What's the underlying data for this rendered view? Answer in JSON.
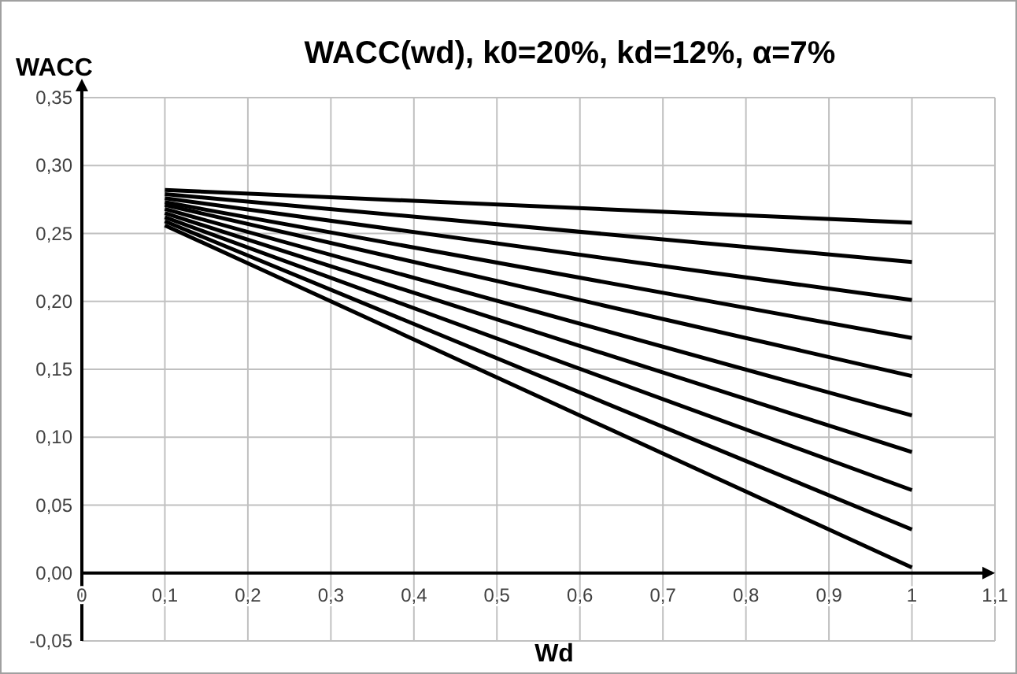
{
  "chart_data": {
    "type": "line",
    "title": "WACC(wd), k0=20%, kd=12%, α=7%",
    "xlabel": "Wd",
    "ylabel": "WACC",
    "x": [
      0.1,
      1
    ],
    "series": [
      {
        "color": "#000000",
        "values": [
          0.282,
          0.258
        ]
      },
      {
        "color": "#000000",
        "values": [
          0.279,
          0.229
        ]
      },
      {
        "color": "#000000",
        "values": [
          0.276,
          0.201
        ]
      },
      {
        "color": "#000000",
        "values": [
          0.273,
          0.173
        ]
      },
      {
        "color": "#000000",
        "values": [
          0.271,
          0.145
        ]
      },
      {
        "color": "#000000",
        "values": [
          0.268,
          0.116
        ]
      },
      {
        "color": "#000000",
        "values": [
          0.265,
          0.089
        ]
      },
      {
        "color": "#000000",
        "values": [
          0.262,
          0.061
        ]
      },
      {
        "color": "#000000",
        "values": [
          0.259,
          0.032
        ]
      },
      {
        "color": "#000000",
        "values": [
          0.256,
          0.004
        ]
      }
    ],
    "xlim": [
      0,
      1.1
    ],
    "xticks": [
      0,
      {
        "value": 0.1,
        "label": "0,1"
      },
      {
        "value": 0.2,
        "label": "0,2"
      },
      {
        "value": 0.3,
        "label": "0,3"
      },
      {
        "value": 0.4,
        "label": "0,4"
      },
      {
        "value": 0.5,
        "label": "0,5"
      },
      {
        "value": 0.6,
        "label": "0,6"
      },
      {
        "value": 0.7,
        "label": "0,7"
      },
      {
        "value": 0.8,
        "label": "0,8"
      },
      {
        "value": 0.9,
        "label": "0,9"
      },
      1,
      {
        "value": 1.1,
        "label": "1,1"
      }
    ],
    "ylim": [
      -0.05,
      0.35
    ],
    "yticks": [
      {
        "value": -0.05,
        "label": "-0,05"
      },
      {
        "value": 0,
        "label": "0,00"
      },
      {
        "value": 0.05,
        "label": "0,05"
      },
      {
        "value": 0.1,
        "label": "0,10"
      },
      {
        "value": 0.15,
        "label": "0,15"
      },
      {
        "value": 0.2,
        "label": "0,20"
      },
      {
        "value": 0.25,
        "label": "0,25"
      },
      {
        "value": 0.3,
        "label": "0,30"
      },
      {
        "value": 0.35,
        "label": "0,35"
      }
    ],
    "grid": true,
    "marker": "none",
    "line_style": "solid"
  }
}
